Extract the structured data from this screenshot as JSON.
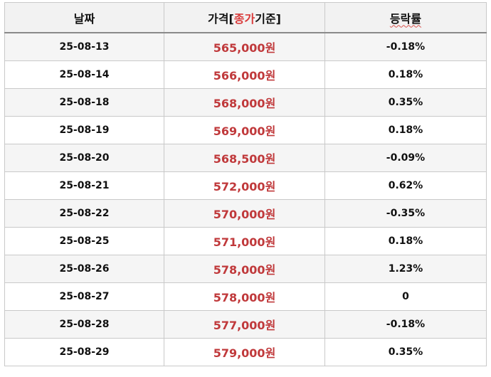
{
  "header": {
    "date": "날짜",
    "price_prefix": "가격[",
    "price_accent": "종가",
    "price_suffix": "기준]",
    "change": "등락률"
  },
  "rows": [
    {
      "date": "25-08-13",
      "price": "565,000원",
      "change": "-0.18%"
    },
    {
      "date": "25-08-14",
      "price": "566,000원",
      "change": "0.18%"
    },
    {
      "date": "25-08-18",
      "price": "568,000원",
      "change": "0.35%"
    },
    {
      "date": "25-08-19",
      "price": "569,000원",
      "change": "0.18%"
    },
    {
      "date": "25-08-20",
      "price": "568,500원",
      "change": "-0.09%"
    },
    {
      "date": "25-08-21",
      "price": "572,000원",
      "change": "0.62%"
    },
    {
      "date": "25-08-22",
      "price": "570,000원",
      "change": "-0.35%"
    },
    {
      "date": "25-08-25",
      "price": "571,000원",
      "change": "0.18%"
    },
    {
      "date": "25-08-26",
      "price": "578,000원",
      "change": "1.23%"
    },
    {
      "date": "25-08-27",
      "price": "578,000원",
      "change": "0"
    },
    {
      "date": "25-08-28",
      "price": "577,000원",
      "change": "-0.18%"
    },
    {
      "date": "25-08-29",
      "price": "579,000원",
      "change": "0.35%"
    }
  ],
  "colors": {
    "price_text": "#c0393b",
    "accent_text": "#d93a3a",
    "header_bg": "#f2f2f2",
    "stripe_bg": "#f5f5f5",
    "border": "#c9c9c9"
  }
}
